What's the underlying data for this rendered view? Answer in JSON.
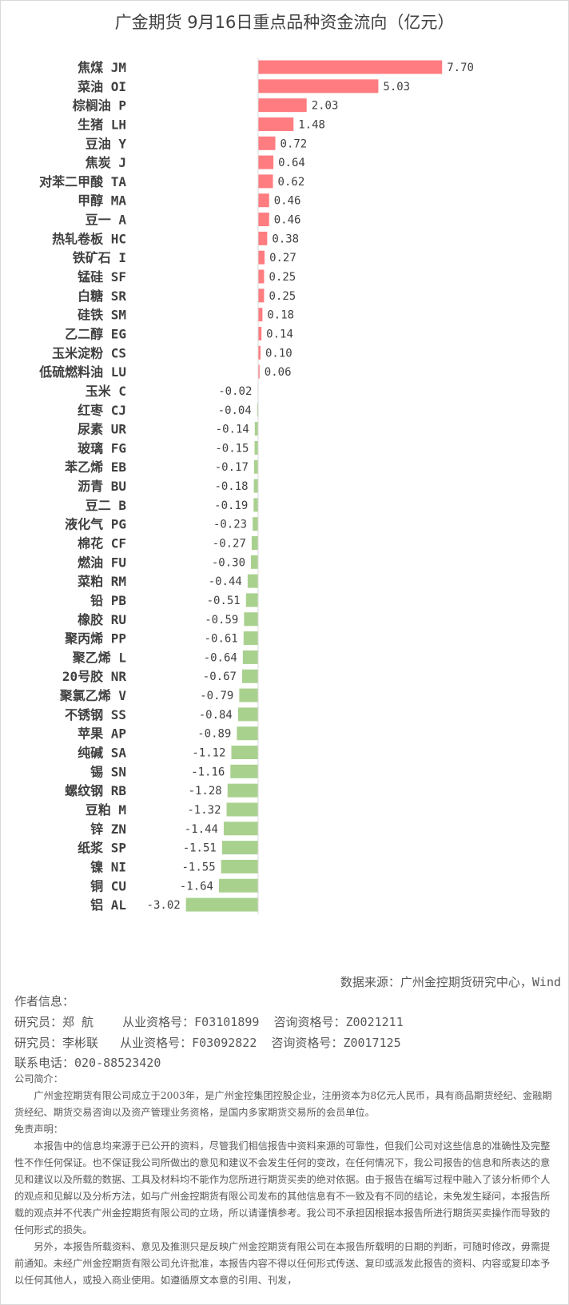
{
  "chart_data": {
    "type": "bar",
    "orientation": "horizontal",
    "title": "广金期货 9月16日重点品种资金流向（亿元）",
    "categories": [
      "焦煤 JM",
      "菜油 OI",
      "棕榈油 P",
      "生猪 LH",
      "豆油 Y",
      "焦炭 J",
      "对苯二甲酸 TA",
      "甲醇 MA",
      "豆一 A",
      "热轧卷板 HC",
      "铁矿石 I",
      "锰硅 SF",
      "白糖 SR",
      "硅铁 SM",
      "乙二醇 EG",
      "玉米淀粉 CS",
      "低硫燃料油 LU",
      "玉米 C",
      "红枣 CJ",
      "尿素 UR",
      "玻璃 FG",
      "苯乙烯 EB",
      "沥青 BU",
      "豆二 B",
      "液化气 PG",
      "棉花 CF",
      "燃油 FU",
      "菜粕 RM",
      "铅 PB",
      "橡胶 RU",
      "聚丙烯 PP",
      "聚乙烯 L",
      "20号胶 NR",
      "聚氯乙烯 V",
      "不锈钢 SS",
      "苹果 AP",
      "纯碱 SA",
      "锡 SN",
      "螺纹钢 RB",
      "豆粕 M",
      "锌 ZN",
      "纸浆 SP",
      "镍 NI",
      "铜 CU",
      "铝 AL"
    ],
    "values": [
      7.7,
      5.03,
      2.03,
      1.48,
      0.72,
      0.64,
      0.62,
      0.46,
      0.46,
      0.38,
      0.27,
      0.25,
      0.25,
      0.18,
      0.14,
      0.1,
      0.06,
      -0.02,
      -0.04,
      -0.14,
      -0.15,
      -0.17,
      -0.18,
      -0.19,
      -0.23,
      -0.27,
      -0.3,
      -0.44,
      -0.51,
      -0.59,
      -0.61,
      -0.64,
      -0.67,
      -0.79,
      -0.84,
      -0.89,
      -1.12,
      -1.16,
      -1.28,
      -1.32,
      -1.44,
      -1.51,
      -1.55,
      -1.64,
      -3.02
    ],
    "value_labels": [
      "7.70",
      "5.03",
      "2.03",
      "1.48",
      "0.72",
      "0.64",
      "0.62",
      "0.46",
      "0.46",
      "0.38",
      "0.27",
      "0.25",
      "0.25",
      "0.18",
      "0.14",
      "0.10",
      "0.06",
      "-0.02",
      "-0.04",
      "-0.14",
      "-0.15",
      "-0.17",
      "-0.18",
      "-0.19",
      "-0.23",
      "-0.27",
      "-0.30",
      "-0.44",
      "-0.51",
      "-0.59",
      "-0.61",
      "-0.64",
      "-0.67",
      "-0.79",
      "-0.84",
      "-0.89",
      "-1.12",
      "-1.16",
      "-1.28",
      "-1.32",
      "-1.44",
      "-1.51",
      "-1.55",
      "-1.64",
      "-3.02"
    ],
    "colors": {
      "positive": "#ff7c80",
      "negative": "#a9d18e"
    },
    "grid": false,
    "legend": "none"
  },
  "source": "数据来源：广州金控期货研究中心，Wind",
  "author": {
    "heading": "作者信息：",
    "lines": [
      "研究员：郑 航    从业资格号：F03101899  咨询资格号：Z0021211",
      "研究员：李彬联   从业资格号：F03092822  咨询资格号：Z0017125"
    ],
    "phone": "联系电话：020-88523420"
  },
  "company": {
    "heading": "公司简介：",
    "text": "广州金控期货有限公司成立于2003年，是广州金控集团控股企业，注册资本为8亿元人民币，具有商品期货经纪、金融期货经纪、期货交易咨询以及资产管理业务资格，是国内多家期货交易所的会员单位。"
  },
  "disclaimer": {
    "heading": "免责声明：",
    "p1": "本报告中的信息均来源于已公开的资料，尽管我们相信报告中资料来源的可靠性，但我们公司对这些信息的准确性及完整性不作任何保证。也不保证我公司所做出的意见和建议不会发生任何的变改，在任何情况下，我公司报告的信息和所表达的意见和建议以及所载的数据、工具及材料均不能作为您所进行期货买卖的绝对依据。由于报告在编写过程中融入了该分析师个人的观点和见解以及分析方法，如与广州金控期货有限公司发布的其他信息有不一致及有不同的结论，未免发生疑问，本报告所载的观点并不代表广州金控期货有限公司的立场，所以请谨慎参考。我公司不承担因根据本报告所进行期货买卖操作而导致的任何形式的损失。",
    "p2": "另外，本报告所载资料、意见及推测只是反映广州金控期货有限公司在本报告所载明的日期的判断，可随时修改，毋需提前通知。未经广州金控期货有限公司允许批准，本报告内容不得以任何形式传送、复印或派发此报告的资料、内容或复印本予以任何其他人，或投入商业使用。如遵循原文本意的引用、刊发，"
  }
}
